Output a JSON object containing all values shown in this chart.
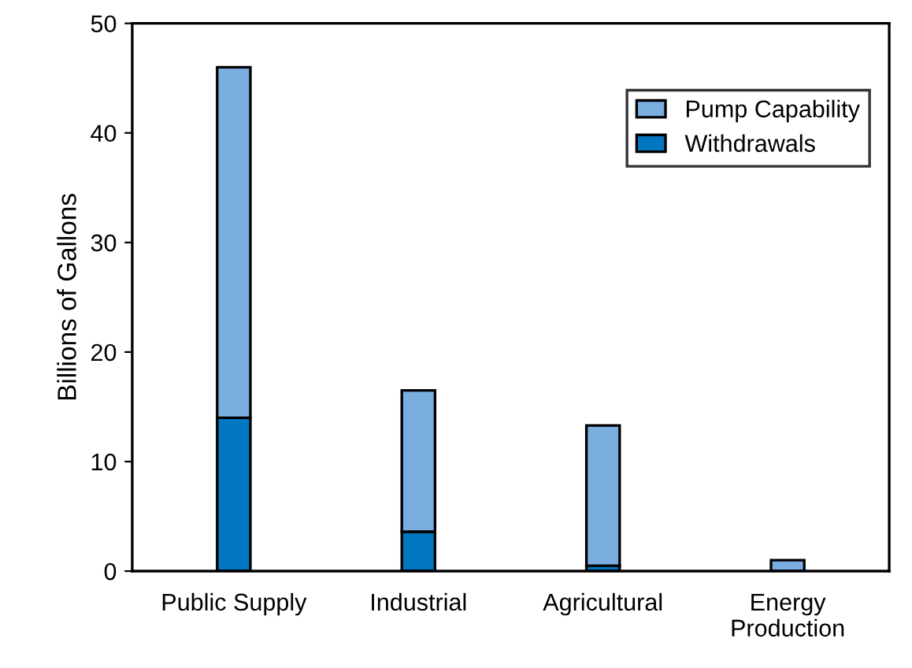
{
  "chart_data": {
    "type": "bar",
    "ylabel": "Billions of Gallons",
    "categories": [
      "Public Supply",
      "Industrial",
      "Agricultural",
      "Energy\nProduction"
    ],
    "stacked": true,
    "series": [
      {
        "name": "Withdrawals",
        "color": "#0077c0",
        "values": [
          14,
          3.6,
          0.5,
          null
        ]
      },
      {
        "name": "Pump Capability",
        "color": "#7aaee0",
        "values": [
          32,
          12.9,
          12.8,
          1.0
        ]
      }
    ],
    "ylim": [
      0,
      50
    ],
    "yticks": [
      0,
      10,
      20,
      30,
      40,
      50
    ],
    "grid": false,
    "legend": "top right"
  }
}
